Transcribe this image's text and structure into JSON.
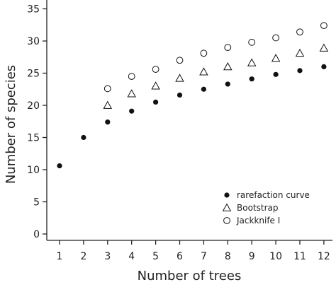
{
  "chart_data": {
    "type": "scatter",
    "xlabel": "Number of trees",
    "ylabel": "Number of species",
    "x_ticks": [
      "1",
      "2",
      "3",
      "4",
      "5",
      "6",
      "7",
      "8",
      "9",
      "10",
      "11",
      "12"
    ],
    "y_ticks": [
      "0",
      "5",
      "10",
      "15",
      "20",
      "25",
      "30",
      "35"
    ],
    "xlim": [
      0.5,
      12.5
    ],
    "ylim": [
      -1,
      35
    ],
    "grid": false,
    "legend_position": "bottom-right",
    "series": [
      {
        "name": "rarefaction curve",
        "marker": "filled-circle",
        "x": [
          1,
          2,
          3,
          4,
          5,
          6,
          7,
          8,
          9,
          10,
          11,
          12
        ],
        "y": [
          10.6,
          15.0,
          17.4,
          19.1,
          20.5,
          21.6,
          22.5,
          23.3,
          24.1,
          24.8,
          25.4,
          26.0
        ]
      },
      {
        "name": "Bootstrap",
        "marker": "open-triangle",
        "x": [
          3,
          4,
          5,
          6,
          7,
          8,
          9,
          10,
          11,
          12
        ],
        "y": [
          20.0,
          21.8,
          23.0,
          24.2,
          25.2,
          26.0,
          26.6,
          27.3,
          28.1,
          28.9
        ]
      },
      {
        "name": "Jackknife I",
        "marker": "open-circle",
        "x": [
          3,
          4,
          5,
          6,
          7,
          8,
          9,
          10,
          11,
          12
        ],
        "y": [
          22.6,
          24.5,
          25.6,
          27.0,
          28.1,
          29.0,
          29.8,
          30.5,
          31.4,
          32.4
        ]
      }
    ],
    "colors": {
      "marker": "#111111",
      "axis": "#222222"
    }
  }
}
